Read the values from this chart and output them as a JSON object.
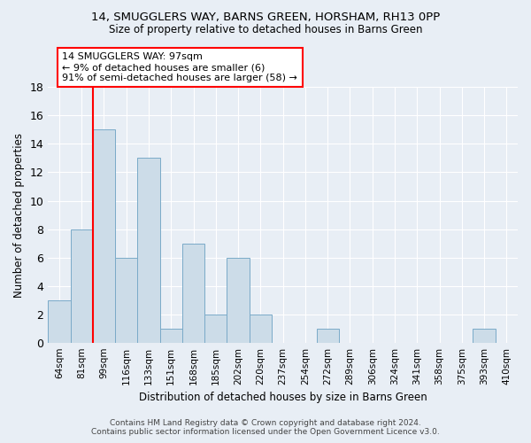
{
  "title1": "14, SMUGGLERS WAY, BARNS GREEN, HORSHAM, RH13 0PP",
  "title2": "Size of property relative to detached houses in Barns Green",
  "xlabel": "Distribution of detached houses by size in Barns Green",
  "ylabel": "Number of detached properties",
  "categories": [
    "64sqm",
    "81sqm",
    "99sqm",
    "116sqm",
    "133sqm",
    "151sqm",
    "168sqm",
    "185sqm",
    "202sqm",
    "220sqm",
    "237sqm",
    "254sqm",
    "272sqm",
    "289sqm",
    "306sqm",
    "324sqm",
    "341sqm",
    "358sqm",
    "375sqm",
    "393sqm",
    "410sqm"
  ],
  "values": [
    3,
    8,
    15,
    6,
    13,
    1,
    7,
    2,
    6,
    2,
    0,
    0,
    1,
    0,
    0,
    0,
    0,
    0,
    0,
    1,
    0
  ],
  "bar_color": "#ccdce8",
  "bar_edge_color": "#7aaac8",
  "red_line_index": 2,
  "annotation_text": "14 SMUGGLERS WAY: 97sqm\n← 9% of detached houses are smaller (6)\n91% of semi-detached houses are larger (58) →",
  "annotation_box_color": "white",
  "annotation_box_edge_color": "red",
  "ylim": [
    0,
    18
  ],
  "yticks": [
    0,
    2,
    4,
    6,
    8,
    10,
    12,
    14,
    16,
    18
  ],
  "footer1": "Contains HM Land Registry data © Crown copyright and database right 2024.",
  "footer2": "Contains public sector information licensed under the Open Government Licence v3.0.",
  "bg_color": "#e8eef5",
  "plot_bg_color": "#e8eef5",
  "grid_color": "#ffffff"
}
